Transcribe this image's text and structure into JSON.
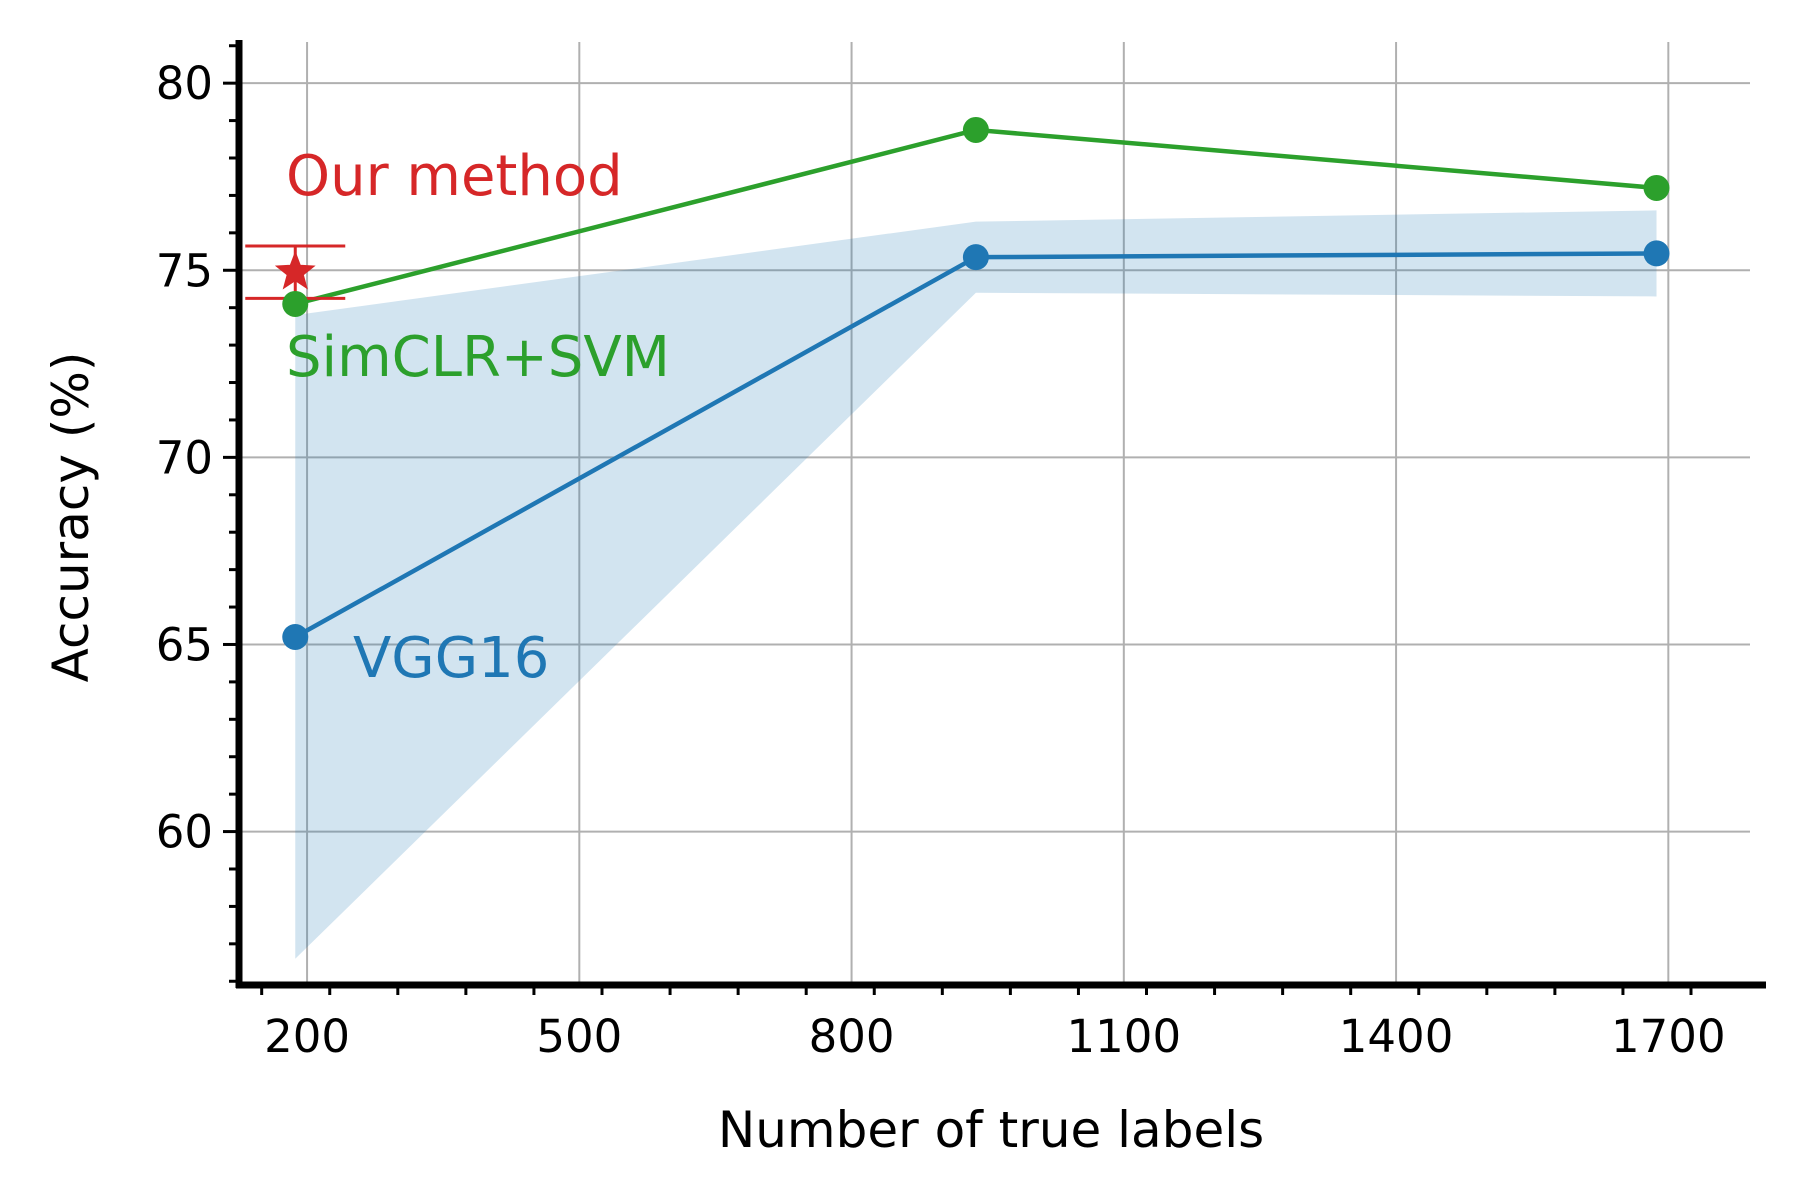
{
  "chart_data": {
    "type": "line",
    "xlabel": "Number of true labels",
    "ylabel": "Accuracy (%)",
    "xlim": [
      125,
      1790
    ],
    "ylim": [
      55.9,
      81.1
    ],
    "x_ticks": [
      200,
      500,
      800,
      1100,
      1400,
      1700
    ],
    "y_ticks": [
      60,
      65,
      70,
      75,
      80
    ],
    "x_minor_step": 75,
    "y_minor_step": 1,
    "grid": true,
    "series": [
      {
        "name": "VGG16",
        "color": "#1f77b4",
        "marker": "circle",
        "x": [
          187,
          937,
          1687
        ],
        "y": [
          65.2,
          75.35,
          75.45
        ],
        "band_lower": [
          56.6,
          74.4,
          74.3
        ],
        "band_upper": [
          73.8,
          76.3,
          76.6
        ],
        "band_color": "#1f77b4"
      },
      {
        "name": "SimCLR+SVM",
        "color": "#2ca02c",
        "marker": "circle",
        "x": [
          187,
          937,
          1687
        ],
        "y": [
          74.1,
          78.75,
          77.2
        ]
      },
      {
        "name": "Our method",
        "color": "#d62728",
        "marker": "star",
        "x": [
          187
        ],
        "y": [
          74.95
        ],
        "error_low": [
          74.25
        ],
        "error_high": [
          75.65
        ]
      }
    ]
  }
}
